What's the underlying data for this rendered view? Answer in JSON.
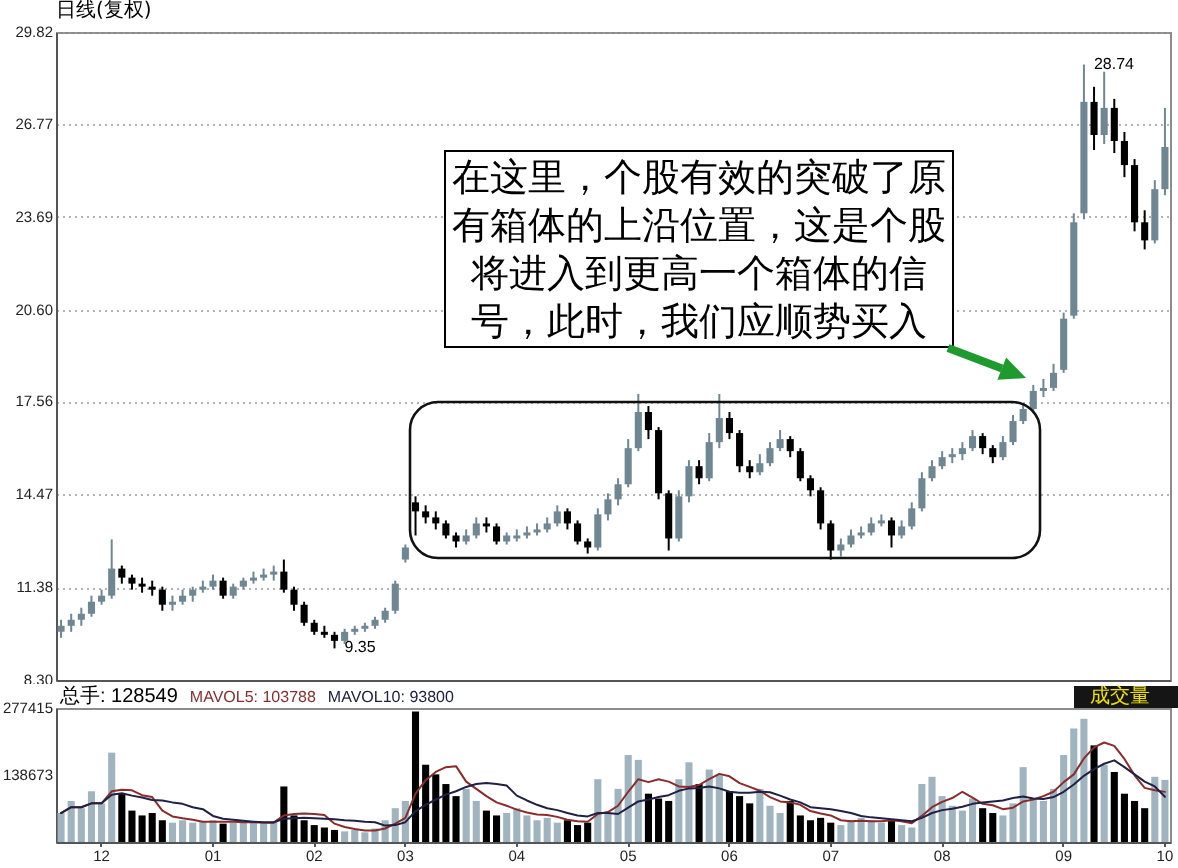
{
  "chart_data": [
    {
      "type": "candlestick",
      "title": "日线(复权)",
      "categories": [
        null,
        null,
        null,
        null,
        "12",
        null,
        null,
        null,
        null,
        null,
        null,
        null,
        null,
        null,
        null,
        "01",
        null,
        null,
        null,
        null,
        null,
        null,
        null,
        null,
        null,
        "02",
        null,
        null,
        null,
        null,
        null,
        null,
        null,
        null,
        "03",
        null,
        null,
        null,
        null,
        null,
        null,
        null,
        null,
        null,
        null,
        "04",
        null,
        null,
        null,
        null,
        null,
        null,
        null,
        null,
        null,
        null,
        "05",
        null,
        null,
        null,
        null,
        null,
        null,
        null,
        null,
        null,
        "06",
        null,
        null,
        null,
        null,
        null,
        null,
        null,
        null,
        null,
        "07",
        null,
        null,
        null,
        null,
        null,
        null,
        null,
        null,
        null,
        null,
        "08",
        null,
        null,
        null,
        null,
        null,
        null,
        null,
        null,
        null,
        null,
        null,
        "09",
        null,
        null,
        null,
        null,
        null,
        null,
        null,
        null,
        null,
        "10"
      ],
      "ohlc": [
        [
          9.9,
          10.3,
          9.7,
          10.1
        ],
        [
          10.1,
          10.5,
          9.9,
          10.3
        ],
        [
          10.3,
          10.7,
          10.1,
          10.5
        ],
        [
          10.5,
          11.1,
          10.4,
          10.9
        ],
        [
          10.9,
          11.3,
          10.8,
          11.1
        ],
        [
          11.1,
          12.97,
          11.0,
          12.0
        ],
        [
          12.0,
          12.1,
          11.5,
          11.7
        ],
        [
          11.7,
          11.8,
          11.3,
          11.5
        ],
        [
          11.5,
          11.7,
          11.2,
          11.4
        ],
        [
          11.4,
          11.6,
          11.1,
          11.3
        ],
        [
          11.3,
          11.4,
          10.6,
          10.8
        ],
        [
          10.8,
          11.1,
          10.6,
          10.9
        ],
        [
          10.9,
          11.3,
          10.8,
          11.1
        ],
        [
          11.1,
          11.4,
          10.9,
          11.3
        ],
        [
          11.3,
          11.6,
          11.2,
          11.4
        ],
        [
          11.4,
          11.8,
          11.3,
          11.6
        ],
        [
          11.6,
          11.7,
          11.0,
          11.1
        ],
        [
          11.1,
          11.5,
          11.0,
          11.4
        ],
        [
          11.4,
          11.7,
          11.3,
          11.6
        ],
        [
          11.6,
          11.9,
          11.5,
          11.7
        ],
        [
          11.7,
          12.0,
          11.6,
          11.8
        ],
        [
          11.8,
          12.1,
          11.6,
          11.9
        ],
        [
          11.9,
          12.3,
          11.2,
          11.3
        ],
        [
          11.3,
          11.4,
          10.6,
          10.8
        ],
        [
          10.8,
          10.9,
          10.1,
          10.2
        ],
        [
          10.2,
          10.3,
          9.8,
          9.9
        ],
        [
          9.9,
          10.1,
          9.7,
          9.8
        ],
        [
          9.8,
          9.9,
          9.35,
          9.6
        ],
        [
          9.6,
          10.0,
          9.5,
          9.9
        ],
        [
          9.9,
          10.1,
          9.8,
          10.0
        ],
        [
          10.0,
          10.2,
          9.9,
          10.1
        ],
        [
          10.1,
          10.4,
          10.0,
          10.3
        ],
        [
          10.3,
          10.7,
          10.2,
          10.6
        ],
        [
          10.6,
          11.6,
          10.5,
          11.5
        ],
        [
          12.3,
          12.8,
          12.2,
          12.7
        ],
        [
          14.2,
          14.4,
          13.1,
          13.9
        ],
        [
          13.9,
          14.1,
          13.5,
          13.7
        ],
        [
          13.7,
          13.9,
          13.3,
          13.5
        ],
        [
          13.5,
          13.6,
          13.0,
          13.1
        ],
        [
          13.1,
          13.2,
          12.7,
          12.9
        ],
        [
          12.9,
          13.3,
          12.8,
          13.1
        ],
        [
          13.1,
          13.7,
          13.0,
          13.5
        ],
        [
          13.5,
          13.7,
          13.2,
          13.4
        ],
        [
          13.4,
          13.5,
          12.8,
          12.9
        ],
        [
          12.9,
          13.2,
          12.8,
          13.1
        ],
        [
          13.0,
          13.3,
          12.9,
          13.1
        ],
        [
          13.1,
          13.4,
          13.0,
          13.2
        ],
        [
          13.2,
          13.5,
          13.1,
          13.3
        ],
        [
          13.3,
          13.7,
          13.2,
          13.5
        ],
        [
          13.5,
          14.1,
          13.4,
          13.9
        ],
        [
          13.9,
          14.0,
          13.3,
          13.5
        ],
        [
          13.5,
          13.6,
          12.8,
          12.9
        ],
        [
          12.9,
          13.0,
          12.5,
          12.7
        ],
        [
          12.7,
          14.0,
          12.6,
          13.8
        ],
        [
          13.8,
          14.5,
          13.6,
          14.3
        ],
        [
          14.3,
          15.0,
          14.1,
          14.8
        ],
        [
          14.8,
          16.3,
          14.7,
          16.0
        ],
        [
          16.0,
          17.8,
          15.9,
          17.2
        ],
        [
          17.2,
          17.4,
          16.3,
          16.6
        ],
        [
          16.6,
          16.7,
          14.3,
          14.5
        ],
        [
          14.5,
          14.6,
          12.6,
          13.0
        ],
        [
          13.0,
          14.6,
          12.9,
          14.4
        ],
        [
          14.4,
          15.6,
          14.2,
          15.4
        ],
        [
          15.4,
          15.6,
          14.8,
          15.0
        ],
        [
          15.0,
          16.5,
          14.9,
          16.2
        ],
        [
          16.2,
          17.8,
          16.0,
          17.0
        ],
        [
          17.0,
          17.2,
          16.3,
          16.5
        ],
        [
          16.5,
          16.6,
          15.2,
          15.4
        ],
        [
          15.4,
          15.6,
          15.0,
          15.2
        ],
        [
          15.2,
          15.8,
          15.1,
          15.5
        ],
        [
          15.5,
          16.2,
          15.4,
          16.0
        ],
        [
          16.0,
          16.6,
          15.9,
          16.3
        ],
        [
          16.3,
          16.4,
          15.7,
          15.9
        ],
        [
          15.9,
          16.0,
          14.9,
          15.0
        ],
        [
          15.0,
          15.1,
          14.4,
          14.6
        ],
        [
          14.6,
          14.7,
          13.3,
          13.5
        ],
        [
          13.5,
          13.6,
          12.3,
          12.6
        ],
        [
          12.6,
          13.0,
          12.4,
          12.8
        ],
        [
          12.8,
          13.3,
          12.7,
          13.1
        ],
        [
          13.1,
          13.4,
          13.0,
          13.2
        ],
        [
          13.2,
          13.7,
          13.1,
          13.5
        ],
        [
          13.5,
          13.8,
          13.4,
          13.6
        ],
        [
          13.6,
          13.7,
          12.7,
          13.1
        ],
        [
          13.1,
          13.6,
          13.0,
          13.4
        ],
        [
          13.4,
          14.2,
          13.3,
          14.0
        ],
        [
          14.0,
          15.2,
          13.9,
          15.0
        ],
        [
          15.0,
          15.6,
          14.9,
          15.4
        ],
        [
          15.4,
          15.9,
          15.3,
          15.7
        ],
        [
          15.7,
          16.0,
          15.5,
          15.8
        ],
        [
          15.8,
          16.2,
          15.6,
          16.0
        ],
        [
          16.0,
          16.6,
          15.9,
          16.4
        ],
        [
          16.4,
          16.5,
          15.8,
          16.0
        ],
        [
          16.0,
          16.1,
          15.5,
          15.7
        ],
        [
          15.7,
          16.4,
          15.6,
          16.2
        ],
        [
          16.2,
          17.1,
          16.1,
          16.9
        ],
        [
          16.9,
          17.5,
          16.8,
          17.3
        ],
        [
          17.3,
          18.1,
          17.2,
          17.9
        ],
        [
          17.9,
          18.3,
          17.7,
          18.0
        ],
        [
          18.0,
          18.8,
          17.9,
          18.5
        ],
        [
          18.6,
          20.5,
          18.5,
          20.3
        ],
        [
          20.4,
          23.8,
          20.3,
          23.5
        ],
        [
          23.8,
          28.74,
          23.6,
          27.5
        ],
        [
          27.5,
          28.0,
          25.9,
          26.4
        ],
        [
          26.4,
          28.5,
          26.1,
          27.3
        ],
        [
          27.3,
          27.6,
          25.8,
          26.2
        ],
        [
          26.2,
          26.5,
          25.0,
          25.4
        ],
        [
          25.4,
          25.6,
          23.2,
          23.5
        ],
        [
          23.5,
          23.9,
          22.6,
          22.9
        ],
        [
          22.9,
          24.9,
          22.8,
          24.6
        ],
        [
          24.6,
          27.3,
          24.4,
          26.0
        ]
      ],
      "colors": [
        "#6f8793",
        "#6f8793",
        "#6f8793",
        "#6f8793",
        "#6f8793",
        "#6f8793",
        "#000000",
        "#000000",
        "#000000",
        "#000000",
        "#000000",
        "#6f8793",
        "#6f8793",
        "#6f8793",
        "#6f8793",
        "#6f8793",
        "#000000",
        "#6f8793",
        "#6f8793",
        "#6f8793",
        "#6f8793",
        "#6f8793",
        "#000000",
        "#000000",
        "#000000",
        "#000000",
        "#000000",
        "#000000",
        "#6f8793",
        "#6f8793",
        "#6f8793",
        "#6f8793",
        "#6f8793",
        "#6f8793",
        "#6f8793",
        "#000000",
        "#000000",
        "#000000",
        "#000000",
        "#000000",
        "#6f8793",
        "#6f8793",
        "#000000",
        "#000000",
        "#6f8793",
        "#6f8793",
        "#6f8793",
        "#6f8793",
        "#6f8793",
        "#6f8793",
        "#000000",
        "#000000",
        "#000000",
        "#6f8793",
        "#6f8793",
        "#6f8793",
        "#6f8793",
        "#6f8793",
        "#000000",
        "#000000",
        "#000000",
        "#6f8793",
        "#6f8793",
        "#000000",
        "#6f8793",
        "#6f8793",
        "#000000",
        "#000000",
        "#000000",
        "#6f8793",
        "#6f8793",
        "#6f8793",
        "#000000",
        "#000000",
        "#000000",
        "#000000",
        "#000000",
        "#6f8793",
        "#6f8793",
        "#6f8793",
        "#6f8793",
        "#6f8793",
        "#000000",
        "#6f8793",
        "#6f8793",
        "#6f8793",
        "#6f8793",
        "#6f8793",
        "#6f8793",
        "#6f8793",
        "#6f8793",
        "#000000",
        "#000000",
        "#6f8793",
        "#6f8793",
        "#6f8793",
        "#6f8793",
        "#6f8793",
        "#6f8793",
        "#6f8793",
        "#6f8793",
        "#6f8793",
        "#000000",
        "#6f8793",
        "#000000",
        "#000000",
        "#000000",
        "#000000",
        "#6f8793",
        "#6f8793"
      ],
      "ylim": [
        8.3,
        29.82
      ],
      "yticks": [
        {
          "value": 8.3,
          "label": "8.30"
        },
        11.38,
        14.47,
        17.56,
        {
          "value": 20.6,
          "label": "20.60"
        },
        23.69,
        26.77,
        29.82
      ],
      "grid": "y",
      "tick_labels": "y",
      "annotations": [
        "在这里，个股有效的突破了原有箱体的上沿位置，这是个股将进入到更高一个箱体的信号，此时，我们应顺势买入",
        "9.35",
        "28.74"
      ]
    },
    {
      "type": "bar",
      "title": "成交量",
      "categories": [
        null,
        null,
        null,
        null,
        "12",
        null,
        null,
        null,
        null,
        null,
        null,
        null,
        null,
        null,
        null,
        "01",
        null,
        null,
        null,
        null,
        null,
        null,
        null,
        null,
        null,
        "02",
        null,
        null,
        null,
        null,
        null,
        null,
        null,
        null,
        "03",
        null,
        null,
        null,
        null,
        null,
        null,
        null,
        null,
        null,
        null,
        "04",
        null,
        null,
        null,
        null,
        null,
        null,
        null,
        null,
        null,
        null,
        "05",
        null,
        null,
        null,
        null,
        null,
        null,
        null,
        null,
        null,
        "06",
        null,
        null,
        null,
        null,
        null,
        null,
        null,
        null,
        null,
        "07",
        null,
        null,
        null,
        null,
        null,
        null,
        null,
        null,
        null,
        null,
        "08",
        null,
        null,
        null,
        null,
        null,
        null,
        null,
        null,
        null,
        null,
        null,
        "09",
        null,
        null,
        null,
        null,
        null,
        null,
        null,
        null,
        null,
        "10"
      ],
      "series": [
        {
          "name": "总手: 128549",
          "values": [
            60000,
            85000,
            70000,
            105000,
            80000,
            185000,
            100000,
            65000,
            55000,
            60000,
            45000,
            40000,
            45000,
            40000,
            42000,
            45000,
            38000,
            40000,
            42000,
            40000,
            38000,
            42000,
            115000,
            55000,
            45000,
            35000,
            30000,
            25000,
            22000,
            25000,
            20000,
            28000,
            45000,
            70000,
            85000,
            270000,
            160000,
            140000,
            120000,
            95000,
            110000,
            85000,
            65000,
            55000,
            60000,
            70000,
            55000,
            45000,
            50000,
            40000,
            45000,
            35000,
            40000,
            130000,
            60000,
            110000,
            180000,
            170000,
            100000,
            90000,
            85000,
            130000,
            165000,
            120000,
            150000,
            140000,
            105000,
            95000,
            80000,
            110000,
            75000,
            60000,
            85000,
            55000,
            45000,
            50000,
            40000,
            35000,
            45000,
            50000,
            45000,
            40000,
            45000,
            35000,
            30000,
            120000,
            135000,
            95000,
            75000,
            65000,
            90000,
            70000,
            60000,
            55000,
            80000,
            155000,
            90000,
            85000,
            110000,
            180000,
            235000,
            255000,
            200000,
            160000,
            145000,
            100000,
            85000,
            70000,
            135000,
            128549
          ],
          "colors": [
            "#9fb4bf",
            "#9fb4bf",
            "#9fb4bf",
            "#9fb4bf",
            "#9fb4bf",
            "#9fb4bf",
            "#000000",
            "#000000",
            "#000000",
            "#000000",
            "#000000",
            "#9fb4bf",
            "#9fb4bf",
            "#9fb4bf",
            "#9fb4bf",
            "#9fb4bf",
            "#000000",
            "#9fb4bf",
            "#9fb4bf",
            "#9fb4bf",
            "#9fb4bf",
            "#9fb4bf",
            "#000000",
            "#000000",
            "#000000",
            "#000000",
            "#000000",
            "#000000",
            "#9fb4bf",
            "#9fb4bf",
            "#9fb4bf",
            "#9fb4bf",
            "#9fb4bf",
            "#9fb4bf",
            "#9fb4bf",
            "#000000",
            "#000000",
            "#000000",
            "#000000",
            "#000000",
            "#9fb4bf",
            "#9fb4bf",
            "#000000",
            "#000000",
            "#9fb4bf",
            "#9fb4bf",
            "#9fb4bf",
            "#9fb4bf",
            "#9fb4bf",
            "#9fb4bf",
            "#000000",
            "#000000",
            "#000000",
            "#9fb4bf",
            "#9fb4bf",
            "#9fb4bf",
            "#9fb4bf",
            "#9fb4bf",
            "#000000",
            "#000000",
            "#000000",
            "#9fb4bf",
            "#9fb4bf",
            "#000000",
            "#9fb4bf",
            "#9fb4bf",
            "#000000",
            "#000000",
            "#000000",
            "#9fb4bf",
            "#9fb4bf",
            "#9fb4bf",
            "#000000",
            "#000000",
            "#000000",
            "#000000",
            "#000000",
            "#9fb4bf",
            "#9fb4bf",
            "#9fb4bf",
            "#9fb4bf",
            "#9fb4bf",
            "#000000",
            "#9fb4bf",
            "#9fb4bf",
            "#9fb4bf",
            "#9fb4bf",
            "#9fb4bf",
            "#9fb4bf",
            "#9fb4bf",
            "#9fb4bf",
            "#000000",
            "#000000",
            "#9fb4bf",
            "#9fb4bf",
            "#9fb4bf",
            "#9fb4bf",
            "#9fb4bf",
            "#9fb4bf",
            "#9fb4bf",
            "#9fb4bf",
            "#9fb4bf",
            "#000000",
            "#9fb4bf",
            "#000000",
            "#000000",
            "#000000",
            "#000000",
            "#9fb4bf",
            "#9fb4bf"
          ]
        },
        {
          "name": "MAVOL5: 103788",
          "type": "line",
          "color": "#8b2c2c",
          "values": [
            60000,
            72000,
            72000,
            80000,
            80000,
            105000,
            108000,
            107000,
            97000,
            93000,
            65000,
            53000,
            49000,
            46000,
            42000,
            42000,
            42000,
            42000,
            41000,
            41000,
            40000,
            40000,
            55000,
            58000,
            59000,
            58000,
            56000,
            38000,
            31000,
            27000,
            24000,
            24000,
            28000,
            38000,
            50000,
            100000,
            128000,
            145000,
            155000,
            157000,
            125000,
            110000,
            95000,
            82000,
            75000,
            67000,
            61000,
            57000,
            56000,
            52000,
            46000,
            43000,
            42000,
            58000,
            62000,
            75000,
            104000,
            130000,
            124000,
            130000,
            125000,
            115000,
            114000,
            118000,
            130000,
            141000,
            136000,
            122000,
            114000,
            106000,
            93000,
            84000,
            82000,
            77000,
            64000,
            59000,
            55000,
            45000,
            43000,
            44000,
            43000,
            43000,
            45000,
            43000,
            39000,
            54000,
            72000,
            83000,
            91000,
            104000,
            92000,
            79000,
            76000,
            68000,
            71000,
            84000,
            88000,
            95000,
            104000,
            124000,
            140000,
            173000,
            196000,
            206000,
            199000,
            172000,
            138000,
            112000,
            107000,
            103788
          ]
        },
        {
          "name": "MAVOL10: 93800",
          "type": "line",
          "color": "#202044",
          "values": [
            60000,
            72000,
            72000,
            80000,
            80000,
            98000,
            101000,
            96000,
            92000,
            87000,
            86000,
            82000,
            79000,
            72000,
            68000,
            54000,
            48000,
            46000,
            44000,
            42000,
            41000,
            41000,
            48000,
            49000,
            50000,
            49000,
            48000,
            47000,
            45000,
            44000,
            42000,
            41000,
            34000,
            35000,
            41000,
            64000,
            77000,
            88000,
            98000,
            105000,
            114000,
            120000,
            122000,
            120000,
            117000,
            96000,
            86000,
            77000,
            70000,
            66000,
            60000,
            55000,
            53000,
            60000,
            60000,
            58000,
            71000,
            84000,
            88000,
            93000,
            97000,
            106000,
            111000,
            112000,
            115000,
            111000,
            104000,
            102000,
            102000,
            104000,
            103000,
            96000,
            88000,
            82000,
            72000,
            70000,
            68000,
            64000,
            60000,
            54000,
            51000,
            49000,
            47000,
            45000,
            43000,
            50000,
            60000,
            66000,
            69000,
            73000,
            79000,
            82000,
            84000,
            86000,
            91000,
            94000,
            90000,
            89000,
            93000,
            104000,
            119000,
            137000,
            151000,
            162000,
            169000,
            155000,
            140000,
            125000,
            115000,
            93800
          ]
        }
      ],
      "ylim": [
        0,
        277415
      ],
      "yticks": [
        138673,
        277415
      ],
      "legend": "top left"
    }
  ]
}
